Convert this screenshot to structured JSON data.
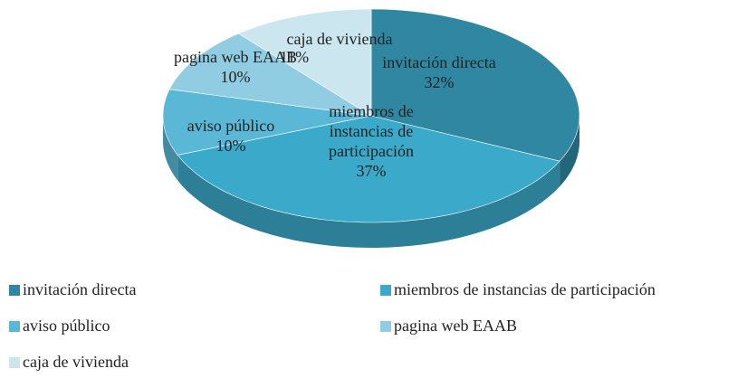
{
  "chart_data": {
    "type": "pie",
    "categories": [
      "invitación directa",
      "miembros de instancias de participación",
      "aviso público",
      "pagina web EAAB",
      "caja de vivienda"
    ],
    "values": [
      32,
      37,
      10,
      10,
      11
    ],
    "value_labels": [
      "32%",
      "37%",
      "10%",
      "10%",
      "11%"
    ],
    "colors": [
      "#2f87a1",
      "#3ba9c9",
      "#5ab8d6",
      "#91cde2",
      "#cbe6ef"
    ],
    "legend": "bottom"
  }
}
